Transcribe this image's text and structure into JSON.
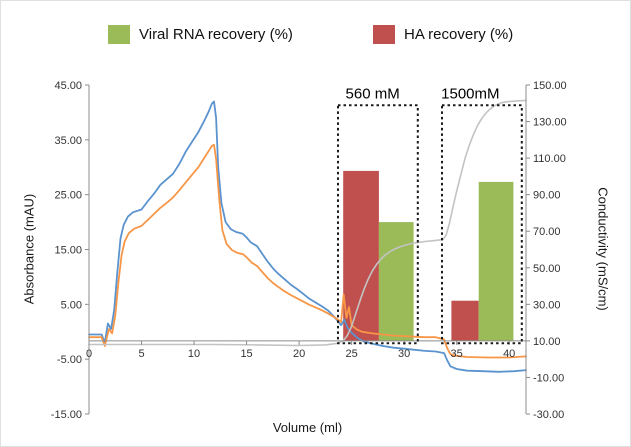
{
  "chart_data": {
    "type": "combo",
    "title": "",
    "xlabel": "Volume (ml)",
    "ylabel_left": "Absorbance (mAU)",
    "ylabel_right": "Conductivity (mS/cm)",
    "xlim": [
      0,
      41.6
    ],
    "x_ticks": [
      0,
      5,
      10,
      15,
      20,
      25,
      30,
      35,
      40
    ],
    "left_axis": {
      "lim": [
        -15,
        45
      ],
      "ticks": [
        45,
        35,
        25,
        15,
        5,
        -5,
        -15
      ]
    },
    "right_axis": {
      "lim": [
        -30,
        150
      ],
      "ticks": [
        150,
        130,
        110,
        90,
        70,
        50,
        30,
        10,
        -10,
        -30
      ]
    },
    "axis_cross_right_value": 10,
    "grid": false,
    "legend_position": "top",
    "legend": [
      {
        "label": "Viral RNA recovery (%)",
        "color": "#9bbb59"
      },
      {
        "label": "HA recovery (%)",
        "color": "#c0504d"
      }
    ],
    "annotations": [
      {
        "text": "560 mM",
        "x": 27.0
      },
      {
        "text": "1500mM",
        "x": 36.3
      }
    ],
    "boxes": [
      {
        "x0": 23.7,
        "x1": 31.3,
        "top": 41.3,
        "bottom": -2.1
      },
      {
        "x0": 33.6,
        "x1": 41.2,
        "top": 41.3,
        "bottom": -2.1
      }
    ],
    "bars": [
      {
        "series": "HA recovery (%)",
        "group": "560 mM",
        "x0": 24.2,
        "x1": 27.6,
        "value_right_axis": 103,
        "color": "#c0504d"
      },
      {
        "series": "Viral RNA recovery (%)",
        "group": "560 mM",
        "x0": 27.6,
        "x1": 30.9,
        "value_right_axis": 75,
        "color": "#9bbb59"
      },
      {
        "series": "HA recovery (%)",
        "group": "1500mM",
        "x0": 34.5,
        "x1": 37.1,
        "value_right_axis": 32,
        "color": "#c0504d"
      },
      {
        "series": "Viral RNA recovery (%)",
        "group": "1500mM",
        "x0": 37.1,
        "x1": 40.4,
        "value_right_axis": 97,
        "color": "#9bbb59"
      }
    ],
    "series": [
      {
        "name": "absorbance-trace-blue",
        "axis": "left",
        "color": "#5b93cf",
        "width": 1.8,
        "points": [
          [
            0,
            -0.5
          ],
          [
            1.2,
            -0.5
          ],
          [
            1.5,
            -2
          ],
          [
            1.8,
            1.5
          ],
          [
            2.1,
            0.5
          ],
          [
            2.4,
            4
          ],
          [
            2.7,
            11
          ],
          [
            3,
            17
          ],
          [
            3.3,
            19.5
          ],
          [
            3.7,
            21
          ],
          [
            4.2,
            21.8
          ],
          [
            5,
            22.3
          ],
          [
            5.6,
            23.8
          ],
          [
            6.2,
            25.2
          ],
          [
            6.8,
            26.8
          ],
          [
            7.4,
            27.8
          ],
          [
            8,
            28.8
          ],
          [
            8.6,
            30.6
          ],
          [
            9.2,
            32.8
          ],
          [
            9.8,
            34.6
          ],
          [
            10.4,
            36.4
          ],
          [
            11,
            38.6
          ],
          [
            11.4,
            40.2
          ],
          [
            11.7,
            41.6
          ],
          [
            11.9,
            42
          ],
          [
            12.1,
            39
          ],
          [
            12.3,
            30
          ],
          [
            12.6,
            23.5
          ],
          [
            13,
            20
          ],
          [
            13.5,
            18.7
          ],
          [
            14,
            18.2
          ],
          [
            14.6,
            17.9
          ],
          [
            15,
            17.2
          ],
          [
            15.4,
            16.3
          ],
          [
            16,
            15.6
          ],
          [
            16.5,
            14.2
          ],
          [
            17,
            12.8
          ],
          [
            17.5,
            11.6
          ],
          [
            18,
            10.6
          ],
          [
            18.6,
            9.6
          ],
          [
            19.2,
            8.6
          ],
          [
            19.8,
            7.8
          ],
          [
            20.4,
            6.9
          ],
          [
            21,
            6
          ],
          [
            21.6,
            5.3
          ],
          [
            22.2,
            4.6
          ],
          [
            22.8,
            3.8
          ],
          [
            23.4,
            2.6
          ],
          [
            24,
            1.2
          ],
          [
            24.3,
            2.2
          ],
          [
            24.6,
            0.8
          ],
          [
            25,
            -0.2
          ],
          [
            25.6,
            -1.2
          ],
          [
            26.2,
            -1.8
          ],
          [
            27,
            -2.2
          ],
          [
            28,
            -2.6
          ],
          [
            29,
            -2.9
          ],
          [
            30,
            -3.1
          ],
          [
            31,
            -3.3
          ],
          [
            32,
            -3.5
          ],
          [
            33,
            -3.6
          ],
          [
            33.8,
            -3.9
          ],
          [
            34.1,
            -5.2
          ],
          [
            34.4,
            -6.3
          ],
          [
            35,
            -6.8
          ],
          [
            36,
            -7.1
          ],
          [
            37.5,
            -7.2
          ],
          [
            39,
            -7.3
          ],
          [
            40.5,
            -7.2
          ],
          [
            41.6,
            -7
          ]
        ]
      },
      {
        "name": "absorbance-trace-orange",
        "axis": "left",
        "color": "#f79646",
        "width": 1.8,
        "points": [
          [
            0,
            -1
          ],
          [
            1.2,
            -1
          ],
          [
            1.5,
            -2.6
          ],
          [
            1.9,
            0.5
          ],
          [
            2.2,
            -0.3
          ],
          [
            2.5,
            3
          ],
          [
            2.8,
            9
          ],
          [
            3.1,
            14
          ],
          [
            3.4,
            16.5
          ],
          [
            3.8,
            18
          ],
          [
            4.3,
            18.8
          ],
          [
            5,
            19.3
          ],
          [
            5.6,
            20.4
          ],
          [
            6.2,
            21.5
          ],
          [
            6.8,
            22.6
          ],
          [
            7.4,
            23.5
          ],
          [
            8,
            24.5
          ],
          [
            8.6,
            25.8
          ],
          [
            9.2,
            27.2
          ],
          [
            9.8,
            28.6
          ],
          [
            10.4,
            30
          ],
          [
            11,
            31.8
          ],
          [
            11.4,
            33
          ],
          [
            11.7,
            33.9
          ],
          [
            11.9,
            34.1
          ],
          [
            12.1,
            31.5
          ],
          [
            12.4,
            24
          ],
          [
            12.7,
            18.5
          ],
          [
            13.1,
            16
          ],
          [
            13.6,
            14.9
          ],
          [
            14.1,
            14.4
          ],
          [
            14.7,
            14.1
          ],
          [
            15.1,
            13.4
          ],
          [
            15.5,
            12.6
          ],
          [
            16,
            12
          ],
          [
            16.5,
            10.9
          ],
          [
            17,
            9.8
          ],
          [
            17.5,
            8.9
          ],
          [
            18,
            8.2
          ],
          [
            18.6,
            7.4
          ],
          [
            19.2,
            6.7
          ],
          [
            19.8,
            6.1
          ],
          [
            20.4,
            5.5
          ],
          [
            21,
            4.9
          ],
          [
            21.6,
            4.4
          ],
          [
            22.2,
            3.9
          ],
          [
            22.8,
            3.3
          ],
          [
            23.4,
            2.6
          ],
          [
            24,
            1.8
          ],
          [
            24.25,
            6.8
          ],
          [
            24.5,
            2.5
          ],
          [
            24.75,
            4.5
          ],
          [
            25,
            1.2
          ],
          [
            25.5,
            0.4
          ],
          [
            26,
            0
          ],
          [
            27,
            -0.3
          ],
          [
            28,
            -0.5
          ],
          [
            29,
            -0.7
          ],
          [
            30,
            -0.8
          ],
          [
            31,
            -0.9
          ],
          [
            32,
            -1
          ],
          [
            33,
            -1
          ],
          [
            33.8,
            -1.4
          ],
          [
            34.1,
            -3
          ],
          [
            34.4,
            -4.1
          ],
          [
            35,
            -4.4
          ],
          [
            36,
            -4.6
          ],
          [
            38,
            -4.7
          ],
          [
            40,
            -4.7
          ],
          [
            41.6,
            -4.5
          ]
        ]
      },
      {
        "name": "conductivity-trace",
        "axis": "right",
        "color": "#c3c3c3",
        "width": 1.6,
        "points": [
          [
            0,
            8
          ],
          [
            4,
            8
          ],
          [
            8,
            8
          ],
          [
            12,
            8
          ],
          [
            16,
            7.8
          ],
          [
            20,
            7.5
          ],
          [
            22.5,
            7.8
          ],
          [
            23.5,
            8.5
          ],
          [
            24.2,
            10
          ],
          [
            24.6,
            13
          ],
          [
            25,
            18
          ],
          [
            25.4,
            25
          ],
          [
            25.8,
            32
          ],
          [
            26.2,
            38.5
          ],
          [
            26.6,
            44
          ],
          [
            27,
            48.5
          ],
          [
            27.4,
            52
          ],
          [
            27.8,
            54.8
          ],
          [
            28.2,
            57
          ],
          [
            28.6,
            58.6
          ],
          [
            29,
            60
          ],
          [
            29.5,
            61.2
          ],
          [
            30,
            62.2
          ],
          [
            30.5,
            63
          ],
          [
            31,
            63.6
          ],
          [
            32,
            64.4
          ],
          [
            33,
            65
          ],
          [
            33.7,
            65.4
          ],
          [
            34,
            68
          ],
          [
            34.3,
            74
          ],
          [
            34.6,
            82
          ],
          [
            35,
            92
          ],
          [
            35.4,
            101
          ],
          [
            35.8,
            110
          ],
          [
            36.2,
            117
          ],
          [
            36.6,
            123
          ],
          [
            37,
            128
          ],
          [
            37.4,
            131.8
          ],
          [
            37.8,
            134.8
          ],
          [
            38.2,
            137
          ],
          [
            38.6,
            138.6
          ],
          [
            39,
            139.8
          ],
          [
            39.5,
            140.6
          ],
          [
            40,
            141
          ],
          [
            41,
            141.4
          ],
          [
            41.6,
            141.5
          ]
        ]
      }
    ]
  }
}
